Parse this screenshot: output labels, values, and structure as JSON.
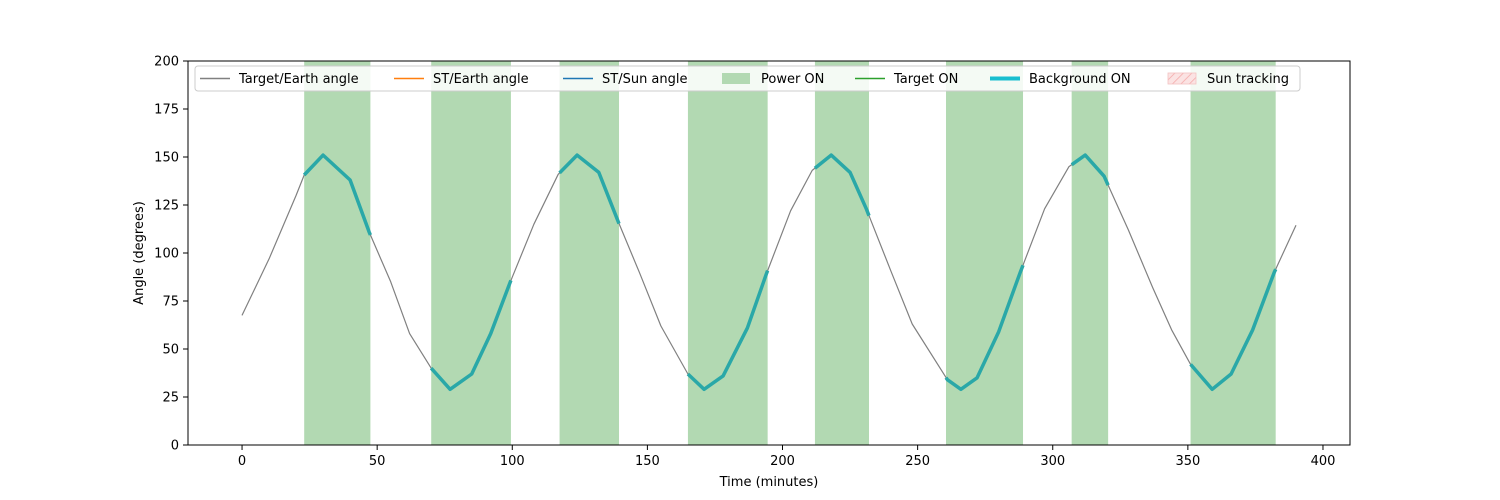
{
  "chart_data": {
    "type": "line",
    "xlabel": "Time (minutes)",
    "ylabel": "Angle (degrees)",
    "xlim": [
      -20,
      410
    ],
    "ylim": [
      0,
      200
    ],
    "x_ticks": [
      0,
      50,
      100,
      150,
      200,
      250,
      300,
      350,
      400
    ],
    "y_ticks": [
      0,
      25,
      50,
      75,
      100,
      125,
      150,
      175,
      200
    ],
    "grid": false,
    "legend_position": "top",
    "legend": [
      {
        "label": "Target/Earth angle",
        "kind": "line",
        "color": "#808080"
      },
      {
        "label": "ST/Earth angle",
        "kind": "line",
        "color": "#ff7f0e"
      },
      {
        "label": "ST/Sun angle",
        "kind": "line",
        "color": "#1f77b4"
      },
      {
        "label": "Power ON",
        "kind": "patch",
        "color": "#b2d9b2"
      },
      {
        "label": "Target ON",
        "kind": "line",
        "color": "#2ca02c"
      },
      {
        "label": "Background ON",
        "kind": "thickline",
        "color": "#17becf"
      },
      {
        "label": "Sun tracking",
        "kind": "hatch",
        "color": "#f4c2c2"
      }
    ],
    "target_earth_angle": {
      "color": "#808080",
      "points": [
        [
          0,
          67.5
        ],
        [
          10,
          97
        ],
        [
          20,
          130
        ],
        [
          23,
          140.6
        ],
        [
          30,
          151
        ],
        [
          40,
          138
        ],
        [
          47,
          111
        ],
        [
          55,
          85
        ],
        [
          62,
          58
        ],
        [
          70,
          40
        ],
        [
          77,
          29
        ],
        [
          85,
          37
        ],
        [
          92,
          58
        ],
        [
          99,
          84
        ],
        [
          108,
          115
        ],
        [
          117,
          141
        ],
        [
          124,
          151
        ],
        [
          132,
          142
        ],
        [
          139,
          117
        ],
        [
          147,
          90
        ],
        [
          155,
          62
        ],
        [
          165,
          37
        ],
        [
          171,
          29
        ],
        [
          178,
          36
        ],
        [
          187,
          61
        ],
        [
          194,
          89
        ],
        [
          203,
          122
        ],
        [
          211,
          143
        ],
        [
          218,
          151
        ],
        [
          225,
          142
        ],
        [
          231,
          123
        ],
        [
          240,
          91
        ],
        [
          248,
          63
        ],
        [
          261,
          34
        ],
        [
          266,
          29
        ],
        [
          272,
          35
        ],
        [
          280,
          59
        ],
        [
          288,
          90
        ],
        [
          297,
          123
        ],
        [
          306,
          145
        ],
        [
          312,
          151
        ],
        [
          319,
          140
        ],
        [
          328,
          112
        ],
        [
          337,
          82
        ],
        [
          344,
          60
        ],
        [
          351,
          42
        ],
        [
          359,
          29
        ],
        [
          366,
          37
        ],
        [
          374,
          60
        ],
        [
          382,
          90
        ],
        [
          390,
          114.5
        ]
      ]
    },
    "power_on_intervals": [
      [
        23,
        47.5
      ],
      [
        70,
        99.5
      ],
      [
        117.5,
        139.5
      ],
      [
        165,
        194.5
      ],
      [
        212,
        232
      ],
      [
        260.5,
        289
      ],
      [
        307,
        320.5
      ],
      [
        351,
        382.5
      ]
    ],
    "background_on_color": "#2aa8a8",
    "sun_tracking_intervals": [],
    "target_on_intervals": []
  }
}
